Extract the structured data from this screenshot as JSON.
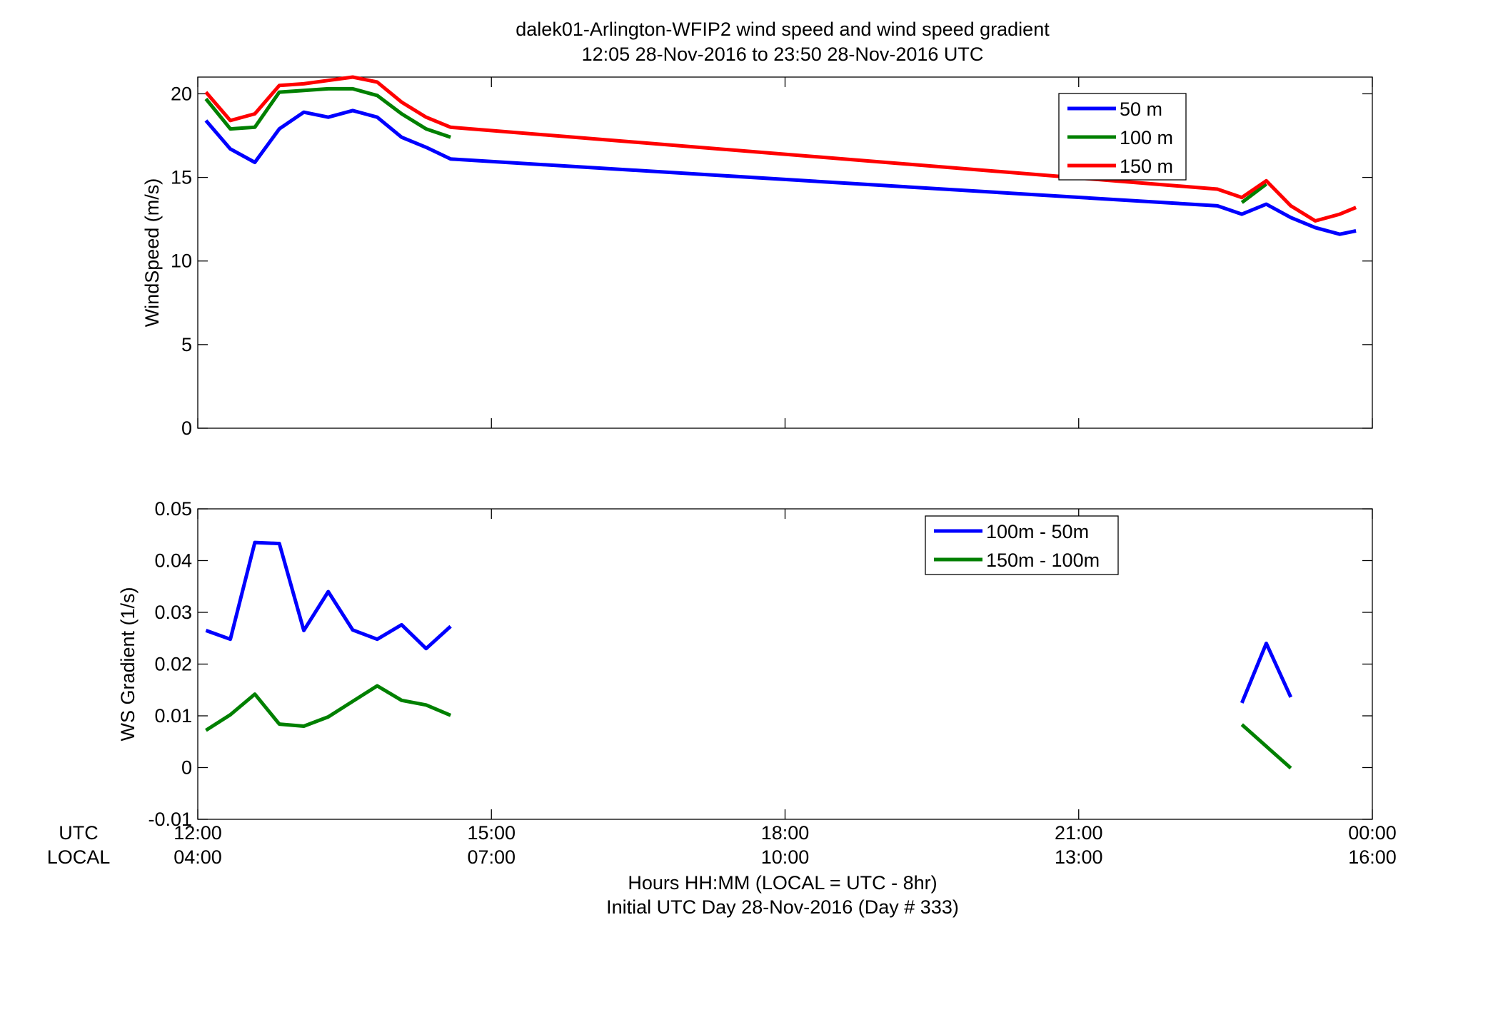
{
  "figure": {
    "title_line1": "dalek01-Arlington-WFIP2  wind speed and wind speed gradient",
    "title_line2": "12:05 28-Nov-2016 to 23:50 28-Nov-2016  UTC",
    "row_label_utc": "UTC",
    "row_label_local": "LOCAL",
    "xlabel_line1": "Hours HH:MM  (LOCAL = UTC - 8hr)",
    "xlabel_line2": "Initial UTC Day 28-Nov-2016 (Day # 333)",
    "x_ticks_utc": [
      "12:00",
      "15:00",
      "18:00",
      "21:00",
      "00:00"
    ],
    "x_ticks_local": [
      "04:00",
      "07:00",
      "10:00",
      "13:00",
      "16:00"
    ]
  },
  "chart_data": [
    {
      "type": "line",
      "title": "",
      "xlabel": "",
      "ylabel": "WindSpeed (m/s)",
      "x_unit": "hours UTC",
      "xlim": [
        12,
        24
      ],
      "ylim": [
        0,
        21
      ],
      "yticks": [
        0,
        5,
        10,
        15,
        20
      ],
      "grid": false,
      "legend_position": "top-right",
      "series": [
        {
          "name": "50 m",
          "color": "#0000ff",
          "x": [
            12.083,
            12.333,
            12.583,
            12.833,
            13.083,
            13.333,
            13.583,
            13.833,
            14.083,
            14.333,
            14.583,
            22.417,
            22.667,
            22.917,
            23.167,
            23.417,
            23.667,
            23.833
          ],
          "y": [
            18.4,
            16.7,
            15.9,
            17.9,
            18.9,
            18.6,
            19.0,
            18.6,
            17.4,
            16.8,
            16.1,
            13.3,
            12.8,
            13.4,
            12.6,
            12.0,
            11.6,
            11.8
          ]
        },
        {
          "name": "100 m",
          "color": "#008000",
          "x": [
            12.083,
            12.333,
            12.583,
            12.833,
            13.083,
            13.333,
            13.583,
            13.833,
            14.083,
            14.333,
            14.583,
            null,
            22.667,
            22.917
          ],
          "y": [
            19.7,
            17.9,
            18.0,
            20.1,
            20.2,
            20.3,
            20.3,
            19.9,
            18.8,
            17.9,
            17.4,
            null,
            13.5,
            14.6
          ]
        },
        {
          "name": "150 m",
          "color": "#ff0000",
          "x": [
            12.083,
            12.333,
            12.583,
            12.833,
            13.083,
            13.333,
            13.583,
            13.833,
            14.083,
            14.333,
            14.583,
            22.417,
            22.667,
            22.917,
            23.167,
            23.417,
            23.667,
            23.833
          ],
          "y": [
            20.1,
            18.4,
            18.8,
            20.5,
            20.6,
            20.8,
            21.0,
            20.7,
            19.5,
            18.6,
            18.0,
            14.3,
            13.8,
            14.8,
            13.3,
            12.4,
            12.8,
            13.2
          ]
        }
      ]
    },
    {
      "type": "line",
      "title": "",
      "xlabel": "",
      "ylabel": "WS Gradient (1/s)",
      "x_unit": "hours UTC",
      "xlim": [
        12,
        24
      ],
      "ylim": [
        -0.01,
        0.05
      ],
      "yticks": [
        -0.01,
        0,
        0.01,
        0.02,
        0.03,
        0.04,
        0.05
      ],
      "ytick_labels": [
        "-0.01",
        "0",
        "0.01",
        "0.02",
        "0.03",
        "0.04",
        "0.05"
      ],
      "grid": false,
      "legend_position": "top-right",
      "series": [
        {
          "name": "100m - 50m",
          "color": "#0000ff",
          "x": [
            12.083,
            12.333,
            12.583,
            12.833,
            13.083,
            13.333,
            13.583,
            13.833,
            14.083,
            14.333,
            14.583,
            null,
            22.667,
            22.917,
            23.167
          ],
          "y": [
            0.0265,
            0.0248,
            0.0435,
            0.0433,
            0.0265,
            0.034,
            0.0266,
            0.0248,
            0.0276,
            0.023,
            0.0273,
            null,
            0.0125,
            0.024,
            0.0136
          ]
        },
        {
          "name": "150m - 100m",
          "color": "#008000",
          "x": [
            12.083,
            12.333,
            12.583,
            12.833,
            13.083,
            13.333,
            13.583,
            13.833,
            14.083,
            14.333,
            14.583,
            null,
            22.667,
            22.917,
            23.167
          ],
          "y": [
            0.0072,
            0.0102,
            0.0142,
            0.0084,
            0.008,
            0.0098,
            0.0128,
            0.0158,
            0.013,
            0.0121,
            0.0101,
            null,
            0.0083,
            0.0041,
            -0.0001
          ]
        }
      ]
    }
  ]
}
